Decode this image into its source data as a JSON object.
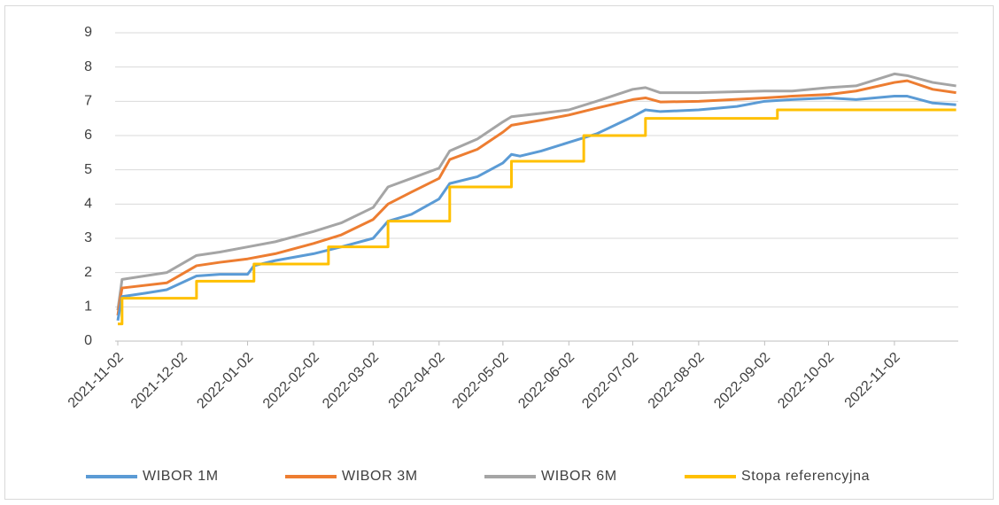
{
  "chart_data": {
    "type": "line",
    "xlim": [
      "2021-11-02",
      "2022-12-02"
    ],
    "xticks": [
      "2021-11-02",
      "2021-12-02",
      "2022-01-02",
      "2022-02-02",
      "2022-03-02",
      "2022-04-02",
      "2022-05-02",
      "2022-06-02",
      "2022-07-02",
      "2022-08-02",
      "2022-09-02",
      "2022-10-02",
      "2022-11-02"
    ],
    "ylim": [
      0,
      9
    ],
    "yticks": [
      0,
      1,
      2,
      3,
      4,
      5,
      6,
      7,
      8,
      9
    ],
    "grid": true,
    "legend": "bottom",
    "series": [
      {
        "name": "WIBOR 1M",
        "color": "#5b9bd5",
        "x": [
          "2021-11-02",
          "2021-11-04",
          "2021-11-15",
          "2021-11-25",
          "2021-12-02",
          "2021-12-09",
          "2021-12-20",
          "2022-01-02",
          "2022-01-05",
          "2022-01-15",
          "2022-02-02",
          "2022-02-15",
          "2022-03-02",
          "2022-03-09",
          "2022-03-20",
          "2022-04-02",
          "2022-04-07",
          "2022-04-20",
          "2022-05-02",
          "2022-05-06",
          "2022-05-10",
          "2022-05-20",
          "2022-06-02",
          "2022-06-15",
          "2022-07-02",
          "2022-07-08",
          "2022-07-15",
          "2022-08-02",
          "2022-08-20",
          "2022-09-02",
          "2022-09-15",
          "2022-10-02",
          "2022-10-15",
          "2022-11-02",
          "2022-11-08",
          "2022-11-20",
          "2022-12-01"
        ],
        "values": [
          0.6,
          1.3,
          1.4,
          1.5,
          1.7,
          1.9,
          1.95,
          1.95,
          2.2,
          2.35,
          2.55,
          2.75,
          3.0,
          3.5,
          3.7,
          4.15,
          4.6,
          4.8,
          5.2,
          5.45,
          5.4,
          5.55,
          5.8,
          6.05,
          6.55,
          6.75,
          6.7,
          6.75,
          6.85,
          7.0,
          7.05,
          7.1,
          7.05,
          7.15,
          7.15,
          6.95,
          6.9
        ]
      },
      {
        "name": "WIBOR 3M",
        "color": "#ed7d31",
        "x": [
          "2021-11-02",
          "2021-11-04",
          "2021-11-25",
          "2021-12-09",
          "2021-12-20",
          "2022-01-02",
          "2022-01-15",
          "2022-02-02",
          "2022-02-15",
          "2022-03-02",
          "2022-03-09",
          "2022-03-20",
          "2022-04-02",
          "2022-04-07",
          "2022-04-20",
          "2022-05-02",
          "2022-05-06",
          "2022-05-20",
          "2022-06-02",
          "2022-06-15",
          "2022-07-02",
          "2022-07-08",
          "2022-07-15",
          "2022-08-02",
          "2022-09-02",
          "2022-09-15",
          "2022-10-02",
          "2022-10-15",
          "2022-11-02",
          "2022-11-08",
          "2022-11-20",
          "2022-12-01"
        ],
        "values": [
          0.75,
          1.55,
          1.7,
          2.2,
          2.3,
          2.4,
          2.55,
          2.85,
          3.1,
          3.55,
          4.0,
          4.35,
          4.75,
          5.3,
          5.6,
          6.1,
          6.3,
          6.45,
          6.6,
          6.8,
          7.05,
          7.1,
          6.98,
          7.0,
          7.1,
          7.15,
          7.2,
          7.3,
          7.55,
          7.6,
          7.35,
          7.25
        ]
      },
      {
        "name": "WIBOR 6M",
        "color": "#a5a5a5",
        "x": [
          "2021-11-02",
          "2021-11-04",
          "2021-11-25",
          "2021-12-09",
          "2021-12-20",
          "2022-01-02",
          "2022-01-15",
          "2022-02-02",
          "2022-02-15",
          "2022-03-02",
          "2022-03-09",
          "2022-03-20",
          "2022-04-02",
          "2022-04-07",
          "2022-04-20",
          "2022-05-02",
          "2022-05-06",
          "2022-05-20",
          "2022-06-02",
          "2022-06-15",
          "2022-07-02",
          "2022-07-08",
          "2022-07-15",
          "2022-08-02",
          "2022-09-02",
          "2022-09-15",
          "2022-10-02",
          "2022-10-15",
          "2022-11-02",
          "2022-11-08",
          "2022-11-20",
          "2022-12-01"
        ],
        "values": [
          0.9,
          1.8,
          2.0,
          2.5,
          2.6,
          2.75,
          2.9,
          3.2,
          3.45,
          3.9,
          4.5,
          4.75,
          5.05,
          5.55,
          5.9,
          6.4,
          6.55,
          6.65,
          6.75,
          7.0,
          7.35,
          7.4,
          7.25,
          7.25,
          7.3,
          7.3,
          7.4,
          7.45,
          7.8,
          7.75,
          7.55,
          7.45
        ]
      },
      {
        "name": "Stopa referencyjna",
        "color": "#ffc000",
        "x": [
          "2021-11-02",
          "2021-11-04",
          "2021-11-04",
          "2021-12-09",
          "2021-12-09",
          "2022-01-05",
          "2022-01-05",
          "2022-02-09",
          "2022-02-09",
          "2022-03-09",
          "2022-03-09",
          "2022-04-07",
          "2022-04-07",
          "2022-05-06",
          "2022-05-06",
          "2022-06-09",
          "2022-06-09",
          "2022-07-08",
          "2022-07-08",
          "2022-09-08",
          "2022-09-08",
          "2022-12-01"
        ],
        "values": [
          0.5,
          0.5,
          1.25,
          1.25,
          1.75,
          1.75,
          2.25,
          2.25,
          2.75,
          2.75,
          3.5,
          3.5,
          4.5,
          4.5,
          5.25,
          5.25,
          6.0,
          6.0,
          6.5,
          6.5,
          6.75,
          6.75
        ]
      }
    ]
  }
}
